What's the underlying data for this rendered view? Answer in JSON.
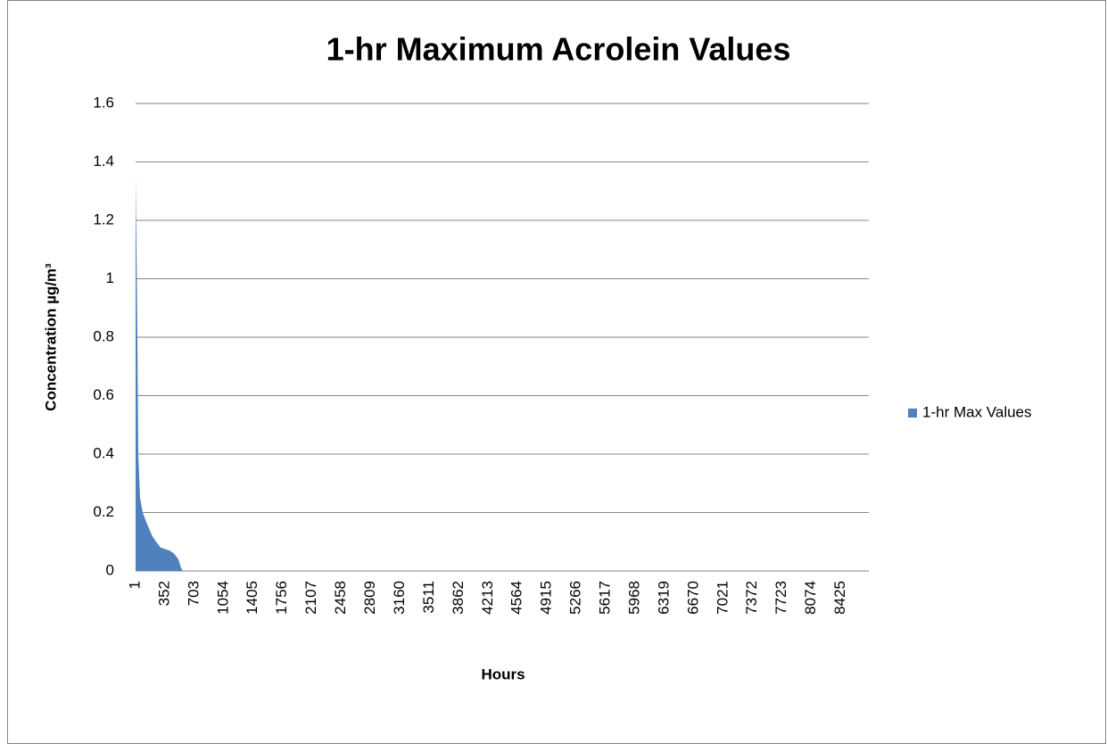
{
  "chart_data": {
    "type": "area",
    "title": "1-hr Maximum Acrolein Values",
    "x_label": "Hours",
    "y_label": "Concentration µg/m³",
    "x": [
      1,
      5,
      12,
      22,
      33,
      54,
      86,
      139,
      200,
      246,
      299,
      406,
      459,
      512,
      544,
      565,
      8760
    ],
    "series": [
      {
        "name": "1-hr Max Values",
        "color": "#4f81bd",
        "values": [
          1.35,
          1.25,
          1.1,
          0.8,
          0.4,
          0.25,
          0.2,
          0.16,
          0.12,
          0.1,
          0.08,
          0.07,
          0.06,
          0.04,
          0.01,
          0,
          0
        ]
      }
    ],
    "xlim": [
      1,
      8760
    ],
    "xticks": [
      1,
      352,
      703,
      1054,
      1405,
      1756,
      2107,
      2458,
      2809,
      3160,
      3511,
      3862,
      4213,
      4564,
      4915,
      5266,
      5617,
      5968,
      6319,
      6670,
      7021,
      7372,
      7723,
      8074,
      8425
    ],
    "ylim": [
      0,
      1.6
    ],
    "yticks": [
      0,
      0.2,
      0.4,
      0.6,
      0.8,
      1,
      1.2,
      1.4,
      1.6
    ],
    "grid": true,
    "legend": "right"
  }
}
